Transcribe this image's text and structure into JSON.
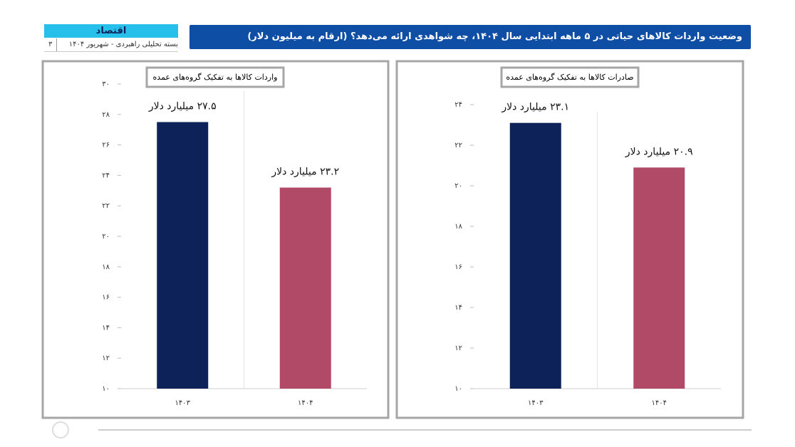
{
  "header": {
    "section": "اقتصاد",
    "subtitle": "بسته تحلیلی راهبردی - شهریور ۱۴۰۴",
    "page": "۳",
    "title": "وضعیت واردات کالاهای حیاتی در ۵ ماهه ابتدایی سال ۱۴۰۴، چه شواهدی ارائه می‌دهد؟ (ارقام به میلیون دلار)"
  },
  "chart_data": [
    {
      "type": "bar",
      "title": "واردات کالاها به تفکیک گروه‌های عمده",
      "categories": [
        "۱۴۰۳",
        "۱۴۰۴"
      ],
      "values": [
        27.5,
        23.2
      ],
      "value_labels": [
        "۲۷.۵ میلیارد دلار",
        "۲۳.۲ میلیارد دلار"
      ],
      "colors": [
        "#0d2259",
        "#b04a66"
      ],
      "ylim": [
        10,
        30
      ],
      "yticks": [
        {
          "value": 10,
          "label": "۱۰"
        },
        {
          "value": 12,
          "label": "۱۲"
        },
        {
          "value": 14,
          "label": "۱۴"
        },
        {
          "value": 16,
          "label": "۱۶"
        },
        {
          "value": 18,
          "label": "۱۸"
        },
        {
          "value": 20,
          "label": "۲۰"
        },
        {
          "value": 22,
          "label": "۲۲"
        },
        {
          "value": 24,
          "label": "۲۴"
        },
        {
          "value": 26,
          "label": "۲۶"
        },
        {
          "value": 28,
          "label": "۲۸"
        },
        {
          "value": 30,
          "label": "۳۰"
        }
      ]
    },
    {
      "type": "bar",
      "title": "صادرات کالاها به تفکیک گروه‌های عمده",
      "categories": [
        "۱۴۰۳",
        "۱۴۰۴"
      ],
      "values": [
        23.1,
        20.9
      ],
      "value_labels": [
        "۲۳.۱ میلیارد دلار",
        "۲۰.۹ میلیارد دلار"
      ],
      "colors": [
        "#0d2259",
        "#b04a66"
      ],
      "ylim": [
        10,
        24
      ],
      "yticks": [
        {
          "value": 10,
          "label": "۱۰"
        },
        {
          "value": 12,
          "label": "۱۲"
        },
        {
          "value": 14,
          "label": "۱۴"
        },
        {
          "value": 16,
          "label": "۱۶"
        },
        {
          "value": 18,
          "label": "۱۸"
        },
        {
          "value": 20,
          "label": "۲۰"
        },
        {
          "value": 22,
          "label": "۲۲"
        },
        {
          "value": 24,
          "label": "۲۴"
        }
      ]
    }
  ]
}
